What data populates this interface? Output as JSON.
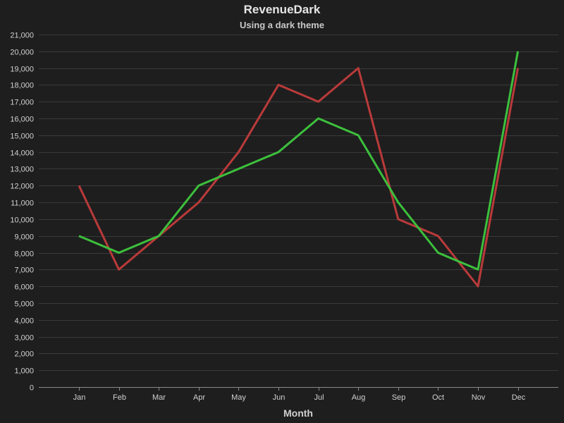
{
  "colors": {
    "background": "#1e1e1e",
    "plot_background": "#1e1e1e",
    "grid": "#3a3a3a",
    "axis": "#8a8a8a",
    "text": "#d0d0d0"
  },
  "chart_data": {
    "type": "line",
    "title": "RevenueDark",
    "subtitle": "Using a dark theme",
    "xlabel": "Month",
    "ylabel": "",
    "categories": [
      "Jan",
      "Feb",
      "Mar",
      "Apr",
      "May",
      "Jun",
      "Jul",
      "Aug",
      "Sep",
      "Oct",
      "Nov",
      "Dec"
    ],
    "ylim": [
      0,
      21000
    ],
    "yticks": [
      0,
      1000,
      2000,
      3000,
      4000,
      5000,
      6000,
      7000,
      8000,
      9000,
      10000,
      11000,
      12000,
      13000,
      14000,
      15000,
      16000,
      17000,
      18000,
      19000,
      20000,
      21000
    ],
    "ytick_labels": [
      "0",
      "1,000",
      "2,000",
      "3,000",
      "4,000",
      "5,000",
      "6,000",
      "7,000",
      "8,000",
      "9,000",
      "10,000",
      "11,000",
      "12,000",
      "13,000",
      "14,000",
      "15,000",
      "16,000",
      "17,000",
      "18,000",
      "19,000",
      "20,000",
      "21,000"
    ],
    "grid": true,
    "legend": "none",
    "series": [
      {
        "color": "#b93a3a",
        "values": [
          12000,
          7000,
          9000,
          11000,
          14000,
          18000,
          17000,
          19000,
          10000,
          9000,
          6000,
          19000
        ]
      },
      {
        "color": "#3cc03c",
        "values": [
          9000,
          8000,
          9000,
          12000,
          13000,
          14000,
          16000,
          15000,
          11000,
          8000,
          7000,
          20000
        ]
      }
    ]
  }
}
